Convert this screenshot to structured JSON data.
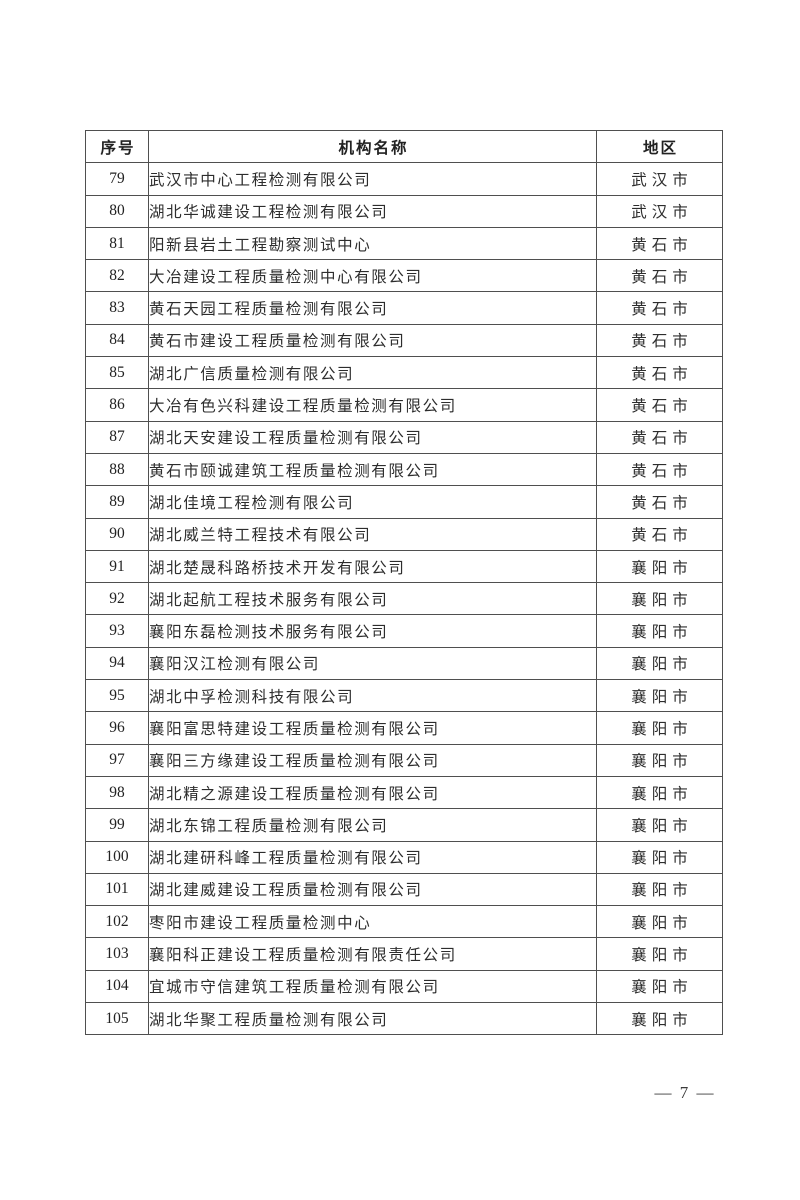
{
  "table": {
    "headers": [
      "序号",
      "机构名称",
      "地区"
    ],
    "rows": [
      {
        "no": "79",
        "name": "武汉市中心工程检测有限公司",
        "region": "武汉市"
      },
      {
        "no": "80",
        "name": "湖北华诚建设工程检测有限公司",
        "region": "武汉市"
      },
      {
        "no": "81",
        "name": "阳新县岩土工程勘察测试中心",
        "region": "黄石市"
      },
      {
        "no": "82",
        "name": "大冶建设工程质量检测中心有限公司",
        "region": "黄石市"
      },
      {
        "no": "83",
        "name": "黄石天园工程质量检测有限公司",
        "region": "黄石市"
      },
      {
        "no": "84",
        "name": "黄石市建设工程质量检测有限公司",
        "region": "黄石市"
      },
      {
        "no": "85",
        "name": "湖北广信质量检测有限公司",
        "region": "黄石市"
      },
      {
        "no": "86",
        "name": "大冶有色兴科建设工程质量检测有限公司",
        "region": "黄石市"
      },
      {
        "no": "87",
        "name": "湖北天安建设工程质量检测有限公司",
        "region": "黄石市"
      },
      {
        "no": "88",
        "name": "黄石市颐诚建筑工程质量检测有限公司",
        "region": "黄石市"
      },
      {
        "no": "89",
        "name": "湖北佳境工程检测有限公司",
        "region": "黄石市"
      },
      {
        "no": "90",
        "name": "湖北威兰特工程技术有限公司",
        "region": "黄石市"
      },
      {
        "no": "91",
        "name": "湖北楚晟科路桥技术开发有限公司",
        "region": "襄阳市"
      },
      {
        "no": "92",
        "name": "湖北起航工程技术服务有限公司",
        "region": "襄阳市"
      },
      {
        "no": "93",
        "name": "襄阳东磊检测技术服务有限公司",
        "region": "襄阳市"
      },
      {
        "no": "94",
        "name": "襄阳汉江检测有限公司",
        "region": "襄阳市"
      },
      {
        "no": "95",
        "name": "湖北中孚检测科技有限公司",
        "region": "襄阳市"
      },
      {
        "no": "96",
        "name": "襄阳富思特建设工程质量检测有限公司",
        "region": "襄阳市"
      },
      {
        "no": "97",
        "name": "襄阳三方缘建设工程质量检测有限公司",
        "region": "襄阳市"
      },
      {
        "no": "98",
        "name": "湖北精之源建设工程质量检测有限公司",
        "region": "襄阳市"
      },
      {
        "no": "99",
        "name": "湖北东锦工程质量检测有限公司",
        "region": "襄阳市"
      },
      {
        "no": "100",
        "name": "湖北建研科峰工程质量检测有限公司",
        "region": "襄阳市"
      },
      {
        "no": "101",
        "name": "湖北建威建设工程质量检测有限公司",
        "region": "襄阳市"
      },
      {
        "no": "102",
        "name": "枣阳市建设工程质量检测中心",
        "region": "襄阳市"
      },
      {
        "no": "103",
        "name": "襄阳科正建设工程质量检测有限责任公司",
        "region": "襄阳市"
      },
      {
        "no": "104",
        "name": "宜城市守信建筑工程质量检测有限公司",
        "region": "襄阳市"
      },
      {
        "no": "105",
        "name": "湖北华聚工程质量检测有限公司",
        "region": "襄阳市"
      }
    ]
  },
  "footer": {
    "page_label": "— 7 —"
  },
  "colors": {
    "text": "#2d2d2d",
    "border": "#4f4f4f",
    "background": "#ffffff"
  }
}
